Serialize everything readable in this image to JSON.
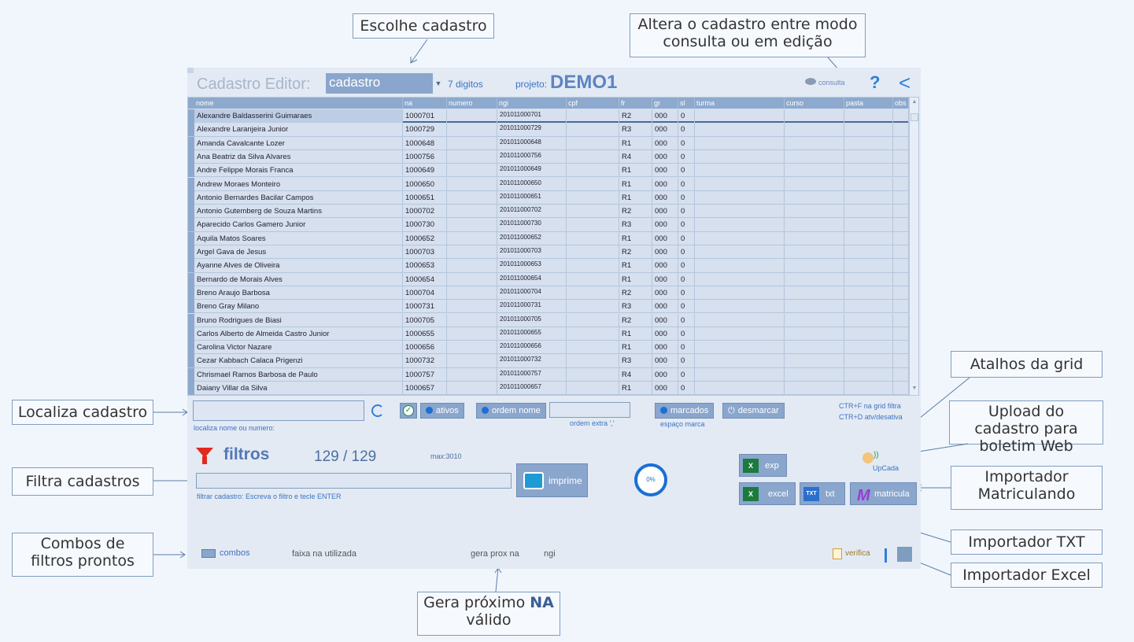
{
  "callouts": {
    "escolhe": "Escolhe cadastro",
    "altera": "Altera o cadastro entre modo consulta ou em edição",
    "atalhos": "Atalhos da grid",
    "upload": "Upload do cadastro para boletim Web",
    "importador_matriculando": "Importador Matriculando",
    "importador_txt": "Importador TXT",
    "importador_excel": "Importador Excel",
    "localiza": "Localiza cadastro",
    "filtra": "Filtra cadastros",
    "combos": "Combos de filtros prontos",
    "gera_prefix": "Gera próximo",
    "gera_bold": "NA",
    "gera_suffix": "válido"
  },
  "header": {
    "title": "Cadastro Editor:",
    "select_value": "cadastro",
    "digits": "7 digitos",
    "project_label": "projeto:",
    "project_name": "DEMO1",
    "mode_label": "consulta",
    "help": "?",
    "back": "<"
  },
  "grid": {
    "columns": [
      "nome",
      "na",
      "numero",
      "ngi",
      "cpf",
      "fr",
      "gr",
      "sl",
      "turma",
      "curso",
      "pasta",
      "obs"
    ],
    "rows": [
      {
        "nome": "Alexandre Baldasserini Guimaraes",
        "na": "1000701",
        "ngi": "201011000701",
        "fr": "R2",
        "gr": "000",
        "sl": "0"
      },
      {
        "nome": "Alexandre Laranjeira Junior",
        "na": "1000729",
        "ngi": "201011000729",
        "fr": "R3",
        "gr": "000",
        "sl": "0"
      },
      {
        "nome": "Amanda Cavalcante Lozer",
        "na": "1000648",
        "ngi": "201011000648",
        "fr": "R1",
        "gr": "000",
        "sl": "0"
      },
      {
        "nome": "Ana Beatriz da Silva Alvares",
        "na": "1000756",
        "ngi": "201011000756",
        "fr": "R4",
        "gr": "000",
        "sl": "0"
      },
      {
        "nome": "Andre Felippe Morais Franca",
        "na": "1000649",
        "ngi": "201011000649",
        "fr": "R1",
        "gr": "000",
        "sl": "0"
      },
      {
        "nome": "Andrew Moraes Monteiro",
        "na": "1000650",
        "ngi": "201011000650",
        "fr": "R1",
        "gr": "000",
        "sl": "0"
      },
      {
        "nome": "Antonio Bernardes Bacilar Campos",
        "na": "1000651",
        "ngi": "201011000651",
        "fr": "R1",
        "gr": "000",
        "sl": "0"
      },
      {
        "nome": "Antonio Gutemberg de Souza Martins",
        "na": "1000702",
        "ngi": "201011000702",
        "fr": "R2",
        "gr": "000",
        "sl": "0"
      },
      {
        "nome": "Aparecido Carlos Gamero Junior",
        "na": "1000730",
        "ngi": "201011000730",
        "fr": "R3",
        "gr": "000",
        "sl": "0"
      },
      {
        "nome": "Aquila Matos Soares",
        "na": "1000652",
        "ngi": "201011000652",
        "fr": "R1",
        "gr": "000",
        "sl": "0"
      },
      {
        "nome": "Argel Gava de Jesus",
        "na": "1000703",
        "ngi": "201011000703",
        "fr": "R2",
        "gr": "000",
        "sl": "0"
      },
      {
        "nome": "Ayanne Alves de Oliveira",
        "na": "1000653",
        "ngi": "201011000653",
        "fr": "R1",
        "gr": "000",
        "sl": "0"
      },
      {
        "nome": "Bernardo de Morais Alves",
        "na": "1000654",
        "ngi": "201011000654",
        "fr": "R1",
        "gr": "000",
        "sl": "0"
      },
      {
        "nome": "Breno Araujo Barbosa",
        "na": "1000704",
        "ngi": "201011000704",
        "fr": "R2",
        "gr": "000",
        "sl": "0"
      },
      {
        "nome": "Breno Gray Milano",
        "na": "1000731",
        "ngi": "201011000731",
        "fr": "R3",
        "gr": "000",
        "sl": "0"
      },
      {
        "nome": "Bruno Rodrigues de Biasi",
        "na": "1000705",
        "ngi": "201011000705",
        "fr": "R2",
        "gr": "000",
        "sl": "0"
      },
      {
        "nome": "Carlos Alberto de Almeida Castro Junior",
        "na": "1000655",
        "ngi": "201011000655",
        "fr": "R1",
        "gr": "000",
        "sl": "0"
      },
      {
        "nome": "Carolina Victor Nazare",
        "na": "1000656",
        "ngi": "201011000656",
        "fr": "R1",
        "gr": "000",
        "sl": "0"
      },
      {
        "nome": "Cezar Kabbach Calaca Prigenzi",
        "na": "1000732",
        "ngi": "201011000732",
        "fr": "R3",
        "gr": "000",
        "sl": "0"
      },
      {
        "nome": "Chrismael Ramos Barbosa de Paulo",
        "na": "1000757",
        "ngi": "201011000757",
        "fr": "R4",
        "gr": "000",
        "sl": "0"
      },
      {
        "nome": "Daiany Villar da Silva",
        "na": "1000657",
        "ngi": "201011000657",
        "fr": "R1",
        "gr": "000",
        "sl": "0"
      }
    ]
  },
  "search": {
    "hint": "localiza nome ou numero:",
    "ativos": "ativos",
    "ordem_nome": "ordem nome",
    "ordem_extra": "ordem extra ','",
    "marcados": "marcados",
    "desmarcar": "desmarcar",
    "espaco_marca": "espaço marca",
    "shortcut1": "CTR+F na grid filtra",
    "shortcut2": "CTR+D atv/desativa"
  },
  "filters": {
    "title": "filtros",
    "count": "129 / 129",
    "max": "max:3010",
    "hint": "filtrar cadastro:  Escreva o filtro e tecle ENTER",
    "imprime": "imprime",
    "progress": "0%"
  },
  "actions": {
    "exp": "exp",
    "excel": "excel",
    "txt": "txt",
    "matricula": "matricula",
    "upcada": "UpCada",
    "xl_icon": "X",
    "txt_icon": "TXT",
    "m_icon": "M"
  },
  "footer": {
    "combos": "combos",
    "faixa": "faixa na utilizada",
    "gera": "gera prox na",
    "ngi": "ngi",
    "verifica": "verifica"
  }
}
